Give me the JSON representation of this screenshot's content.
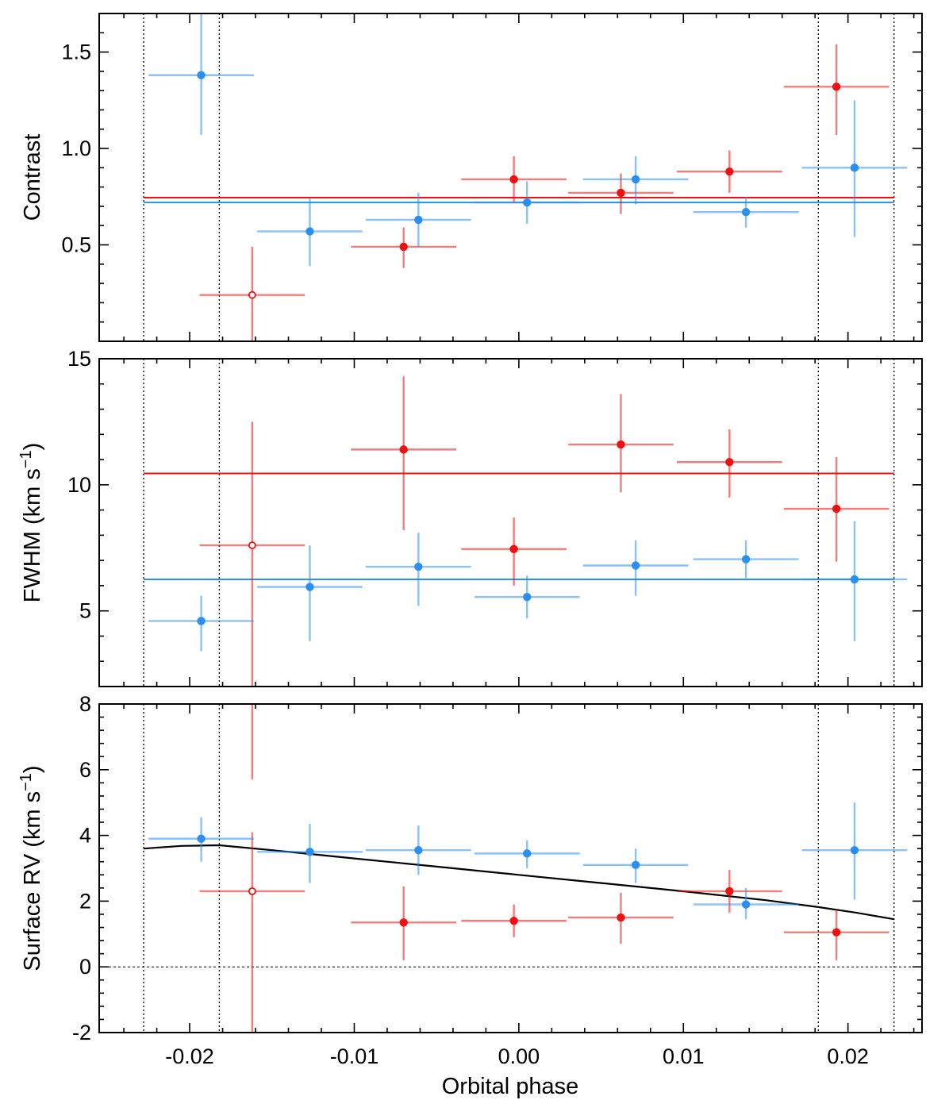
{
  "chart_data": {
    "type": "scatter",
    "xlabel": "Orbital phase",
    "xlim": [
      -0.0255,
      0.0245
    ],
    "xticks": [
      -0.02,
      -0.01,
      0.0,
      0.01,
      0.02
    ],
    "xtick_labels": [
      "-0.02",
      "-0.01",
      "0.00",
      "0.01",
      "0.02"
    ],
    "contact_lines": [
      -0.0228,
      -0.0182,
      0.0182,
      0.0228
    ],
    "colors": {
      "red": "#ee1111",
      "blue": "#2a8ff0",
      "model": "#000000"
    },
    "panels": [
      {
        "id": "contrast",
        "ylabel": "Contrast",
        "ylim": [
          0,
          1.7
        ],
        "yticks": [
          0.5,
          1.0,
          1.5
        ],
        "ytick_labels": [
          "0.5",
          "1.0",
          "1.5"
        ],
        "hlines": [
          {
            "series": "red",
            "y": 0.745
          },
          {
            "series": "blue",
            "y": 0.72
          }
        ],
        "series": [
          {
            "name": "red",
            "points": [
              {
                "x": -0.0162,
                "xerr": 0.0032,
                "y": 0.24,
                "ylo": 0.0,
                "yhi": 0.49,
                "open": true
              },
              {
                "x": -0.007,
                "xerr": 0.0032,
                "y": 0.49,
                "ylo": 0.38,
                "yhi": 0.59
              },
              {
                "x": -0.0003,
                "xerr": 0.0032,
                "y": 0.84,
                "ylo": 0.72,
                "yhi": 0.96
              },
              {
                "x": 0.0062,
                "xerr": 0.0032,
                "y": 0.77,
                "ylo": 0.66,
                "yhi": 0.87
              },
              {
                "x": 0.0128,
                "xerr": 0.0032,
                "y": 0.88,
                "ylo": 0.77,
                "yhi": 0.99
              },
              {
                "x": 0.0193,
                "xerr": 0.0032,
                "y": 1.32,
                "ylo": 1.07,
                "yhi": 1.54
              }
            ]
          },
          {
            "name": "blue",
            "points": [
              {
                "x": -0.0193,
                "xerr": 0.0032,
                "y": 1.38,
                "ylo": 1.07,
                "yhi": 1.7
              },
              {
                "x": -0.0127,
                "xerr": 0.0032,
                "y": 0.57,
                "ylo": 0.39,
                "yhi": 0.74
              },
              {
                "x": -0.0061,
                "xerr": 0.0032,
                "y": 0.63,
                "ylo": 0.49,
                "yhi": 0.77
              },
              {
                "x": 0.0005,
                "xerr": 0.0032,
                "y": 0.72,
                "ylo": 0.61,
                "yhi": 0.83
              },
              {
                "x": 0.0071,
                "xerr": 0.0032,
                "y": 0.84,
                "ylo": 0.71,
                "yhi": 0.96
              },
              {
                "x": 0.0138,
                "xerr": 0.0032,
                "y": 0.67,
                "ylo": 0.59,
                "yhi": 0.75
              },
              {
                "x": 0.0204,
                "xerr": 0.0032,
                "y": 0.9,
                "ylo": 0.54,
                "yhi": 1.25
              }
            ]
          }
        ]
      },
      {
        "id": "fwhm",
        "ylabel": "FWHM (km s",
        "ylabel_sup": "−1",
        "ylabel_end": ")",
        "ylim": [
          2.0,
          15.0
        ],
        "yticks": [
          5,
          10,
          15
        ],
        "ytick_labels": [
          "5",
          "10",
          "15"
        ],
        "hlines": [
          {
            "series": "red",
            "y": 10.45
          },
          {
            "series": "blue",
            "y": 6.25
          }
        ],
        "series": [
          {
            "name": "red",
            "points": [
              {
                "x": -0.0162,
                "xerr": 0.0032,
                "y": 7.6,
                "ylo": 2.0,
                "yhi": 12.5,
                "open": true
              },
              {
                "x": -0.007,
                "xerr": 0.0032,
                "y": 11.4,
                "ylo": 8.2,
                "yhi": 14.3
              },
              {
                "x": -0.0003,
                "xerr": 0.0032,
                "y": 7.45,
                "ylo": 6.0,
                "yhi": 8.7
              },
              {
                "x": 0.0062,
                "xerr": 0.0032,
                "y": 11.6,
                "ylo": 9.7,
                "yhi": 13.6
              },
              {
                "x": 0.0128,
                "xerr": 0.0032,
                "y": 10.9,
                "ylo": 9.5,
                "yhi": 12.2
              },
              {
                "x": 0.0193,
                "xerr": 0.0032,
                "y": 9.05,
                "ylo": 6.95,
                "yhi": 11.1
              }
            ]
          },
          {
            "name": "blue",
            "points": [
              {
                "x": -0.0193,
                "xerr": 0.0032,
                "y": 4.6,
                "ylo": 3.4,
                "yhi": 5.6
              },
              {
                "x": -0.0127,
                "xerr": 0.0032,
                "y": 5.95,
                "ylo": 3.8,
                "yhi": 7.6
              },
              {
                "x": -0.0061,
                "xerr": 0.0032,
                "y": 6.75,
                "ylo": 5.2,
                "yhi": 8.1
              },
              {
                "x": 0.0005,
                "xerr": 0.0032,
                "y": 5.55,
                "ylo": 4.7,
                "yhi": 6.4
              },
              {
                "x": 0.0071,
                "xerr": 0.0032,
                "y": 6.8,
                "ylo": 5.6,
                "yhi": 7.8
              },
              {
                "x": 0.0138,
                "xerr": 0.0032,
                "y": 7.05,
                "ylo": 6.3,
                "yhi": 7.8
              },
              {
                "x": 0.0204,
                "xerr": 0.0032,
                "y": 6.25,
                "ylo": 3.8,
                "yhi": 8.55
              }
            ]
          }
        ]
      },
      {
        "id": "surface-rv",
        "ylabel": "Surface RV (km s",
        "ylabel_sup": "−1",
        "ylabel_end": ")",
        "ylim": [
          -2,
          8
        ],
        "yticks": [
          -2,
          0,
          2,
          4,
          6,
          8
        ],
        "ytick_labels": [
          "-2",
          "0",
          "2",
          "4",
          "6",
          "8"
        ],
        "zero_line": 0,
        "model_curve": [
          [
            -0.0228,
            3.6
          ],
          [
            -0.0205,
            3.68
          ],
          [
            -0.0182,
            3.7
          ],
          [
            -0.015,
            3.55
          ],
          [
            -0.01,
            3.3
          ],
          [
            -0.005,
            3.05
          ],
          [
            0.0,
            2.8
          ],
          [
            0.005,
            2.55
          ],
          [
            0.01,
            2.3
          ],
          [
            0.015,
            2.03
          ],
          [
            0.0182,
            1.82
          ],
          [
            0.0205,
            1.65
          ],
          [
            0.0228,
            1.45
          ]
        ],
        "series": [
          {
            "name": "red",
            "points": [
              {
                "x": -0.0162,
                "xerr": 0.0032,
                "y": 2.3,
                "ylo": -2.0,
                "yhi": 4.1,
                "open": true,
                "extra_yerr": [
                  5.7,
                  8.0
                ]
              },
              {
                "x": -0.007,
                "xerr": 0.0032,
                "y": 1.35,
                "ylo": 0.2,
                "yhi": 2.45
              },
              {
                "x": -0.0003,
                "xerr": 0.0032,
                "y": 1.4,
                "ylo": 0.9,
                "yhi": 1.9
              },
              {
                "x": 0.0062,
                "xerr": 0.0032,
                "y": 1.5,
                "ylo": 0.7,
                "yhi": 2.25
              },
              {
                "x": 0.0128,
                "xerr": 0.0032,
                "y": 2.3,
                "ylo": 1.65,
                "yhi": 2.95
              },
              {
                "x": 0.0193,
                "xerr": 0.0032,
                "y": 1.05,
                "ylo": 0.2,
                "yhi": 1.75
              }
            ]
          },
          {
            "name": "blue",
            "points": [
              {
                "x": -0.0193,
                "xerr": 0.0032,
                "y": 3.9,
                "ylo": 3.2,
                "yhi": 4.55
              },
              {
                "x": -0.0127,
                "xerr": 0.0032,
                "y": 3.5,
                "ylo": 2.55,
                "yhi": 4.35
              },
              {
                "x": -0.0061,
                "xerr": 0.0032,
                "y": 3.55,
                "ylo": 2.8,
                "yhi": 4.3
              },
              {
                "x": 0.0005,
                "xerr": 0.0032,
                "y": 3.45,
                "ylo": 3.0,
                "yhi": 3.85
              },
              {
                "x": 0.0071,
                "xerr": 0.0032,
                "y": 3.1,
                "ylo": 2.55,
                "yhi": 3.6
              },
              {
                "x": 0.0138,
                "xerr": 0.0032,
                "y": 1.9,
                "ylo": 1.45,
                "yhi": 2.4
              },
              {
                "x": 0.0204,
                "xerr": 0.0032,
                "y": 3.55,
                "ylo": 2.05,
                "yhi": 5.0
              }
            ]
          }
        ]
      }
    ]
  }
}
